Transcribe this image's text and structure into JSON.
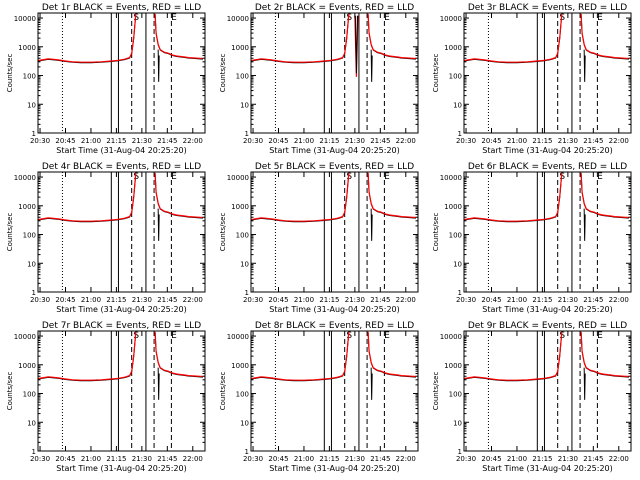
{
  "figure": {
    "xlabel": "Start Time (31-Aug-04 20:25:20)",
    "ylabel": "Counts/sec",
    "colors": {
      "events": "#000000",
      "lld": "#ff0000",
      "frame": "#000000"
    }
  },
  "chart_data": [
    {
      "type": "line",
      "title": "Det 1r BLACK = Events, RED = LLD",
      "detector": "1r",
      "variant": "A"
    },
    {
      "type": "line",
      "title": "Det 2r BLACK = Events, RED = LLD",
      "detector": "2r",
      "variant": "B"
    },
    {
      "type": "line",
      "title": "Det 3r BLACK = Events, RED = LLD",
      "detector": "3r",
      "variant": "A"
    },
    {
      "type": "line",
      "title": "Det 4r BLACK = Events, RED = LLD",
      "detector": "4r",
      "variant": "A"
    },
    {
      "type": "line",
      "title": "Det 5r BLACK = Events, RED = LLD",
      "detector": "5r",
      "variant": "A"
    },
    {
      "type": "line",
      "title": "Det 6r BLACK = Events, RED = LLD",
      "detector": "6r",
      "variant": "A"
    },
    {
      "type": "line",
      "title": "Det 7r BLACK = Events, RED = LLD",
      "detector": "7r",
      "variant": "A"
    },
    {
      "type": "line",
      "title": "Det 8r BLACK = Events, RED = LLD",
      "detector": "8r",
      "variant": "A"
    },
    {
      "type": "line",
      "title": "Det 9r BLACK = Events, RED = LLD",
      "detector": "9r",
      "variant": "A"
    }
  ],
  "shared": {
    "xlim_min": [
      20.48,
      22.12
    ],
    "ylim": [
      1,
      15000
    ],
    "yscale": "log",
    "grid": false,
    "x_ticks_min": [
      20.5,
      20.75,
      21.0,
      21.25,
      21.5,
      21.75,
      22.0
    ],
    "x_tick_labels": [
      "20:30",
      "20:45",
      "21:00",
      "21:15",
      "21:30",
      "21:45",
      "22:00"
    ],
    "y_ticks": [
      1,
      10,
      100,
      1000,
      10000
    ],
    "y_tick_labels": [
      "1",
      "10",
      "100",
      "1000",
      "10000"
    ],
    "markers": [
      {
        "x": 20.72,
        "style": "dotted"
      },
      {
        "x": 21.2,
        "style": "solid"
      },
      {
        "x": 21.27,
        "style": "solid"
      },
      {
        "x": 21.4,
        "style": "dashed"
      },
      {
        "x": 21.54,
        "style": "solid"
      },
      {
        "x": 21.62,
        "style": "dashed"
      },
      {
        "x": 21.79,
        "style": "dashed"
      }
    ],
    "saa_labels": [
      {
        "x": 21.445,
        "text": "S"
      },
      {
        "x": 21.815,
        "text": "E"
      }
    ],
    "series": [
      {
        "name": "Events",
        "color": "#000000"
      },
      {
        "name": "LLD",
        "color": "#ff0000"
      }
    ],
    "profile": {
      "x": [
        20.48,
        20.52,
        20.58,
        20.62,
        20.68,
        20.75,
        20.82,
        20.9,
        21.0,
        21.1,
        21.2,
        21.27,
        21.33,
        21.38,
        21.4,
        21.42,
        21.44
      ],
      "y": [
        330,
        350,
        380,
        370,
        350,
        320,
        300,
        290,
        290,
        300,
        320,
        340,
        370,
        420,
        600,
        2000,
        14000
      ]
    },
    "profile_after": {
      "x": [
        21.63,
        21.64,
        21.66,
        21.68,
        21.72,
        21.76,
        21.8,
        21.84,
        21.88,
        21.92,
        21.96,
        22.0,
        22.05,
        22.1
      ],
      "y": [
        14000,
        3000,
        1200,
        800,
        650,
        600,
        520,
        480,
        460,
        440,
        420,
        410,
        400,
        390
      ]
    }
  }
}
